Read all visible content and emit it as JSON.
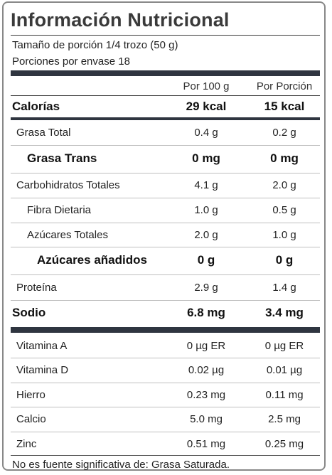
{
  "title": "Información Nutricional",
  "serving_size": "Tamaño de porción 1/4 trozo (50 g)",
  "servings_per_container": "Porciones por envase 18",
  "columns": {
    "per100": "Por 100 g",
    "perServing": "Por Porción"
  },
  "calories": {
    "label": "Calorías",
    "per100": "29 kcal",
    "perServing": "15 kcal"
  },
  "nutrients": [
    {
      "label": "Grasa Total",
      "per100": "0.4 g",
      "perServing": "0.2 g"
    },
    {
      "label": "Grasa Trans",
      "per100": "0 mg",
      "perServing": "0 mg"
    },
    {
      "label": "Carbohidratos Totales",
      "per100": "4.1 g",
      "perServing": "2.0 g"
    },
    {
      "label": "Fibra Dietaria",
      "per100": "1.0 g",
      "perServing": "0.5 g"
    },
    {
      "label": "Azúcares Totales",
      "per100": "2.0 g",
      "perServing": "1.0 g"
    },
    {
      "label": "Azúcares añadidos",
      "per100": "0 g",
      "perServing": "0 g"
    },
    {
      "label": "Proteína",
      "per100": "2.9 g",
      "perServing": "1.4 g"
    },
    {
      "label": "Sodio",
      "per100": "6.8 mg",
      "perServing": "3.4 mg"
    }
  ],
  "vitamins": [
    {
      "label": "Vitamina A",
      "per100": "0 µg ER",
      "perServing": "0 µg ER"
    },
    {
      "label": "Vitamina D",
      "per100": "0.02 µg",
      "perServing": "0.01 µg"
    },
    {
      "label": "Hierro",
      "per100": "0.23 mg",
      "perServing": "0.11 mg"
    },
    {
      "label": "Calcio",
      "per100": "5.0 mg",
      "perServing": "2.5 mg"
    },
    {
      "label": "Zinc",
      "per100": "0.51 mg",
      "perServing": "0.25 mg"
    }
  ],
  "footnote": "No es fuente significativa de: Grasa Saturada."
}
